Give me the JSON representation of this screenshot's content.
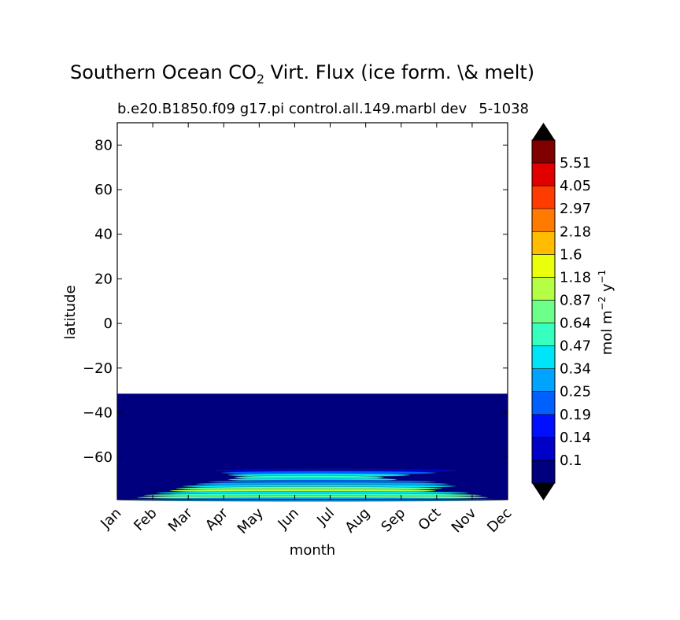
{
  "chart_data": {
    "type": "heatmap",
    "title_main": "Southern Ocean CO",
    "title_sub": "2",
    "title_rest": " Virt. Flux (ice form. \\& melt)",
    "subtitle": "b.e20.B1850.f09 g17.pi control.all.149.marbl dev",
    "subtitle_right": "5-1038",
    "xlabel": "month",
    "ylabel": "latitude",
    "x_ticks": [
      "Jan",
      "Feb",
      "Mar",
      "Apr",
      "May",
      "Jun",
      "Jul",
      "Aug",
      "Sep",
      "Oct",
      "Nov",
      "Dec"
    ],
    "y_ticks": [
      80,
      60,
      40,
      20,
      0,
      -20,
      -40,
      -60
    ],
    "ylim": [
      -79,
      90
    ],
    "data_lat_max": -31.5,
    "colorbar": {
      "label_main": "mol m",
      "label_exp1": "−2",
      "label_mid": " y",
      "label_exp2": "−1",
      "levels": [
        "0.1",
        "0.14",
        "0.19",
        "0.25",
        "0.34",
        "0.47",
        "0.64",
        "0.87",
        "1.18",
        "1.6",
        "2.18",
        "2.97",
        "4.05",
        "5.51"
      ],
      "colors": [
        "#00007f",
        "#0000c8",
        "#0010ff",
        "#0060ff",
        "#00a4ff",
        "#00e4f8",
        "#36ffc0",
        "#6cff8a",
        "#b4ff43",
        "#eaff0c",
        "#ffbc00",
        "#ff7a00",
        "#ff3b00",
        "#e00000",
        "#800000"
      ],
      "under_color": "#000000",
      "over_color": "#000000"
    },
    "bands": [
      {
        "lat": -66,
        "level": 1,
        "start": 3.0,
        "end": 10.4
      },
      {
        "lat": -67,
        "level": 3,
        "start": 3.2,
        "end": 9.8
      },
      {
        "lat": -68,
        "level": 5,
        "start": 3.4,
        "end": 9.0
      },
      {
        "lat": -69,
        "level": 6,
        "start": 3.6,
        "end": 8.2
      },
      {
        "lat": -70,
        "level": 5,
        "start": 3.4,
        "end": 8.6
      },
      {
        "lat": -71,
        "level": 3,
        "start": 2.8,
        "end": 9.8
      },
      {
        "lat": -72,
        "level": 4,
        "start": 2.4,
        "end": 10.2
      },
      {
        "lat": -73,
        "level": 5,
        "start": 2.0,
        "end": 10.4
      },
      {
        "lat": -74,
        "level": 7,
        "start": 1.8,
        "end": 10.0
      },
      {
        "lat": -75,
        "level": 8,
        "start": 1.6,
        "end": 9.8
      },
      {
        "lat": -76,
        "level": 5,
        "start": 1.2,
        "end": 10.8
      },
      {
        "lat": -77,
        "level": 6,
        "start": 0.8,
        "end": 11.2
      },
      {
        "lat": -78,
        "level": 7,
        "start": 0.6,
        "end": 11.4
      },
      {
        "lat": -79,
        "level": 4,
        "start": 0.0,
        "end": 12.0
      }
    ]
  }
}
